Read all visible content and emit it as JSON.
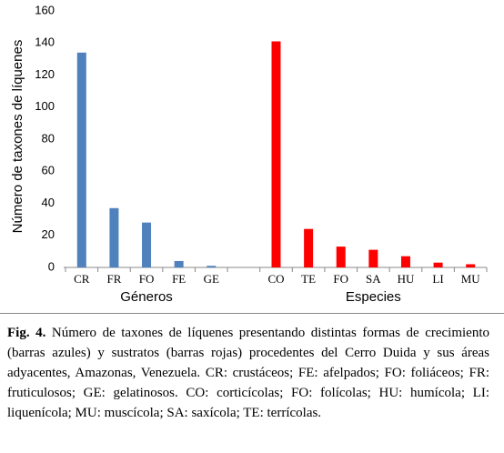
{
  "chart_data": {
    "type": "bar",
    "y_label": "Número de taxones de líquenes",
    "categories": [
      "CR",
      "FR",
      "FO",
      "FE",
      "GE",
      null,
      "CO",
      "TE",
      "FO",
      "SA",
      "HU",
      "LI",
      "MU"
    ],
    "series": [
      {
        "name": "Géneros",
        "color": "#4f81bd",
        "values": [
          134,
          37,
          28,
          4,
          1,
          null,
          null,
          null,
          null,
          null,
          null,
          null,
          null
        ]
      },
      {
        "name": "Especies",
        "color": "#ff0000",
        "values": [
          null,
          null,
          null,
          null,
          null,
          null,
          141,
          24,
          13,
          11,
          7,
          3,
          2
        ]
      }
    ],
    "ylim": [
      0,
      160
    ],
    "yticks": [
      0,
      20,
      40,
      60,
      80,
      100,
      120,
      140,
      160
    ],
    "grid": false
  },
  "caption": {
    "label": "Fig. 4.",
    "text": "Número de taxones de líquenes presentando distintas formas de crecimiento (barras azules) y sustratos (barras rojas) procedentes del Cerro Duida y sus áreas adyacentes, Amazonas, Venezuela. CR: crustáceos; FE: afelpados; FO: foliáceos; FR: fruticulosos; GE: gelatinosos. CO: corticícolas; FO: folícolas; HU: humícola; LI: liquenícola; MU: muscícola; SA: saxícola; TE: terrícolas."
  }
}
